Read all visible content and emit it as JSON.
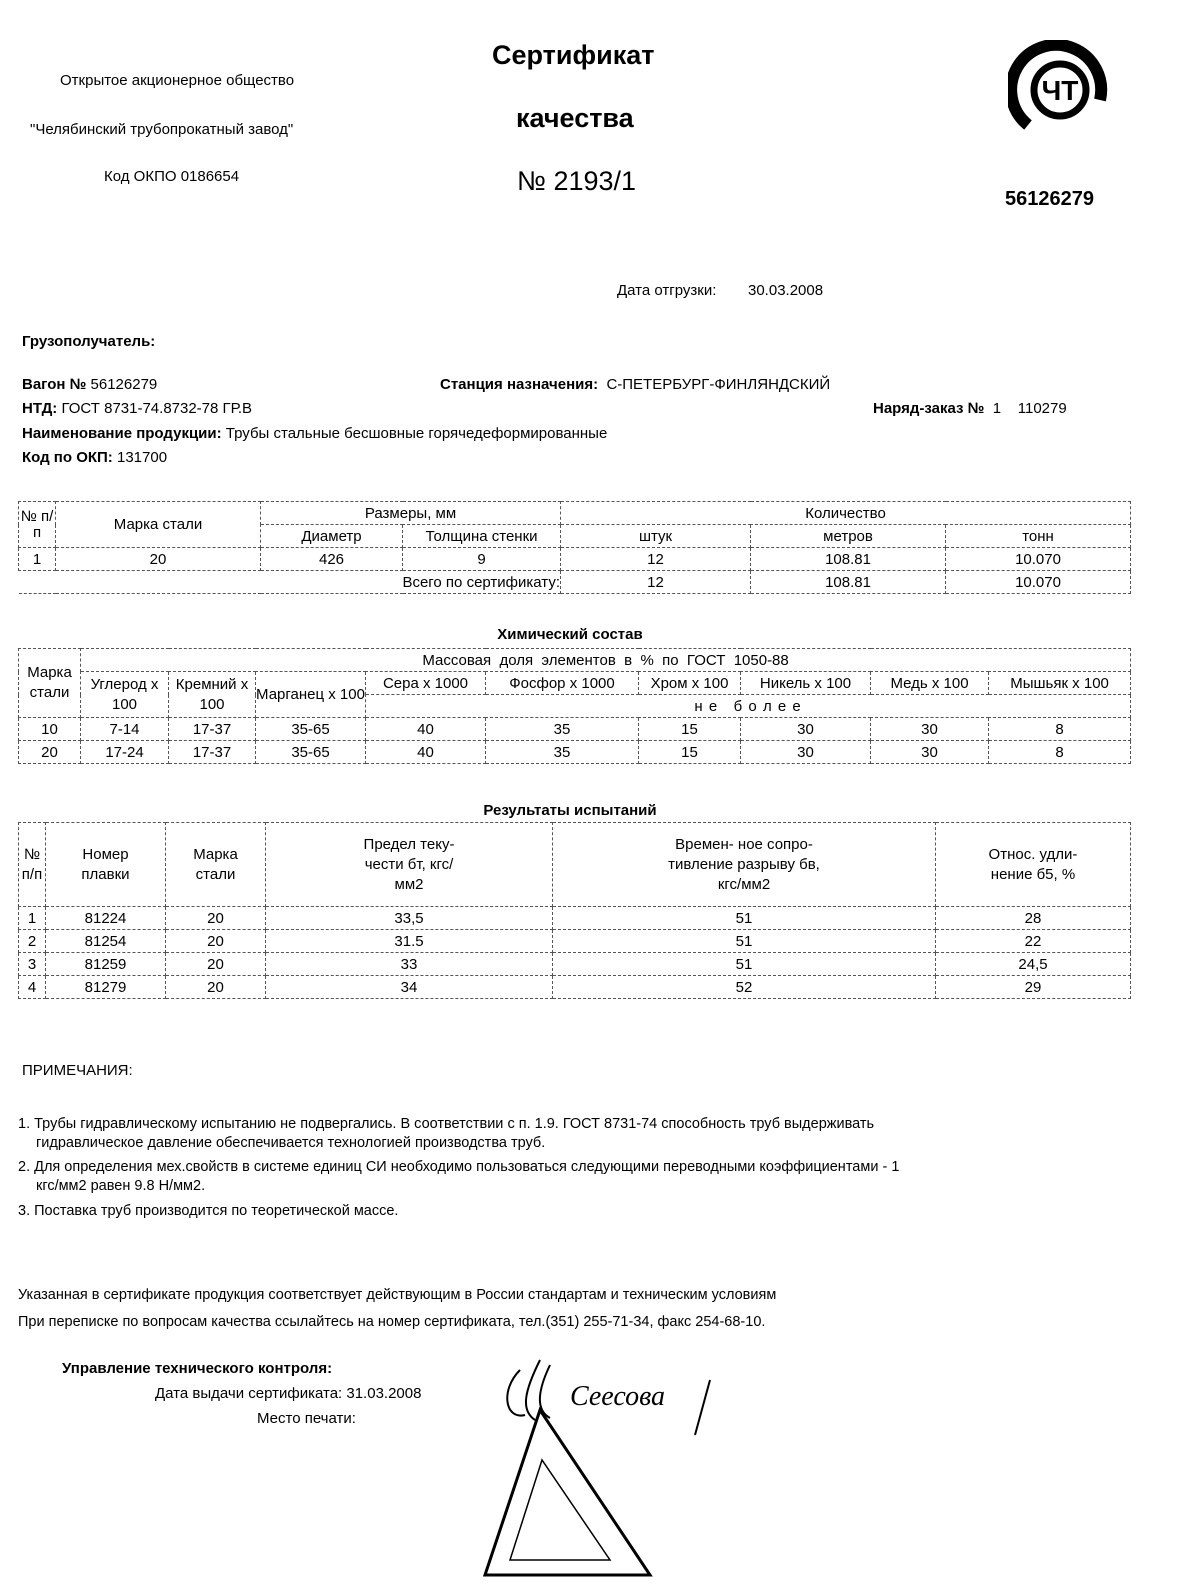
{
  "header": {
    "company_line1": "Открытое акционерное общество",
    "company_line2": "\"Челябинский трубопрокатный завод\"",
    "okpo": "Код ОКПО 0186654",
    "title1": "Сертификат",
    "title2": "качества",
    "number": "№ 2193/1",
    "logo_text": "ЧТ",
    "wagon_top": "56126279"
  },
  "shipment": {
    "date_label": "Дата отгрузки:",
    "date_value": "30.03.2008",
    "consignee_label": "Грузополучатель:",
    "wagon_label": "Вагон №",
    "wagon_value": "56126279",
    "station_label": "Станция назначения:",
    "station_value": "С-ПЕТЕРБУРГ-ФИНЛЯНДСКИЙ",
    "ntd_label": "НТД:",
    "ntd_value": "ГОСТ 8731-74.8732-78 ГР.В",
    "order_label": "Наряд-заказ №",
    "order_value": "1    110279",
    "product_label": "Наименование продукции:",
    "product_value": "Трубы стальные бесшовные горячедеформированные",
    "okp_label": "Код по ОКП:",
    "okp_value": "131700"
  },
  "quantity_table": {
    "h_no": "№ п/п",
    "h_grade": "Марка стали",
    "h_sizes": "Размеры, мм",
    "h_qty": "Количество",
    "h_diam": "Диаметр",
    "h_wall": "Толщина стенки",
    "h_pcs": "штук",
    "h_m": "метров",
    "h_t": "тонн",
    "rows": [
      [
        "1",
        "20",
        "426",
        "9",
        "12",
        "108.81",
        "10.070"
      ]
    ],
    "total_label": "Всего по сертификату:",
    "total": [
      "12",
      "108.81",
      "10.070"
    ]
  },
  "chem_table": {
    "title": "Химический состав",
    "h_grade": "Марка стали",
    "h_mass": "Массовая  доля  элементов  в  %  по  ГОСТ  1050-88",
    "h_c": "Углерод х 100",
    "h_si": "Кремний х 100",
    "h_mn": "Марганец х 100",
    "h_s": "Сера х 1000",
    "h_p": "Фосфор х 1000",
    "h_cr": "Хром х 100",
    "h_ni": "Никель х 100",
    "h_cu": "Медь х 100",
    "h_as": "Мышьяк х 100",
    "not_more": "н е   б о л е е",
    "rows": [
      [
        "10",
        "7-14",
        "17-37",
        "35-65",
        "40",
        "35",
        "15",
        "30",
        "30",
        "8"
      ],
      [
        "20",
        "17-24",
        "17-37",
        "35-65",
        "40",
        "35",
        "15",
        "30",
        "30",
        "8"
      ]
    ]
  },
  "test_table": {
    "title": "Результаты испытаний",
    "h_no": "№ п/п",
    "h_heat": "Номер плавки",
    "h_grade": "Марка стали",
    "h_yield": "Предел теку- чести бт, кгс/мм2",
    "h_tensile": "Времен- ное сопро- тивление разрыву бв, кгс/мм2",
    "h_elong": "Относ. удли- нение б5, %",
    "rows": [
      [
        "1",
        "81224",
        "20",
        "33,5",
        "51",
        "28"
      ],
      [
        "2",
        "81254",
        "20",
        "31.5",
        "51",
        "22"
      ],
      [
        "3",
        "81259",
        "20",
        "33",
        "51",
        "24,5"
      ],
      [
        "4",
        "81279",
        "20",
        "34",
        "52",
        "29"
      ]
    ]
  },
  "notes": {
    "title": "ПРИМЕЧАНИЯ:",
    "items": [
      "1. Трубы гидравлическому испытанию не подвергались. В соответствии с п. 1.9. ГОСТ 8731-74 способность труб выдерживать",
      "гидравлическое давление обеспечивается технологией производства труб.",
      "2. Для определения мех.свойств в системе единиц СИ необходимо пользоваться следующими переводными коэффициентами - 1",
      "кгс/мм2 равен 9.8 Н/мм2.",
      "3. Поставка труб производится по теоретической массе."
    ]
  },
  "footer": {
    "compliance": "Указанная в сертификате продукция соответствует действующим в России стандартам и техническим условиям",
    "contact": "При переписке по вопросам качества ссылайтесь на номер сертификата, тел.(351) 255-71-34, факс 254-68-10.",
    "dept": "Управление технического контроля:",
    "issue_label": "Дата выдачи сертификата:",
    "issue_date": "31.03.2008",
    "seal_label": "Место печати:",
    "signature": "Сеесова"
  }
}
